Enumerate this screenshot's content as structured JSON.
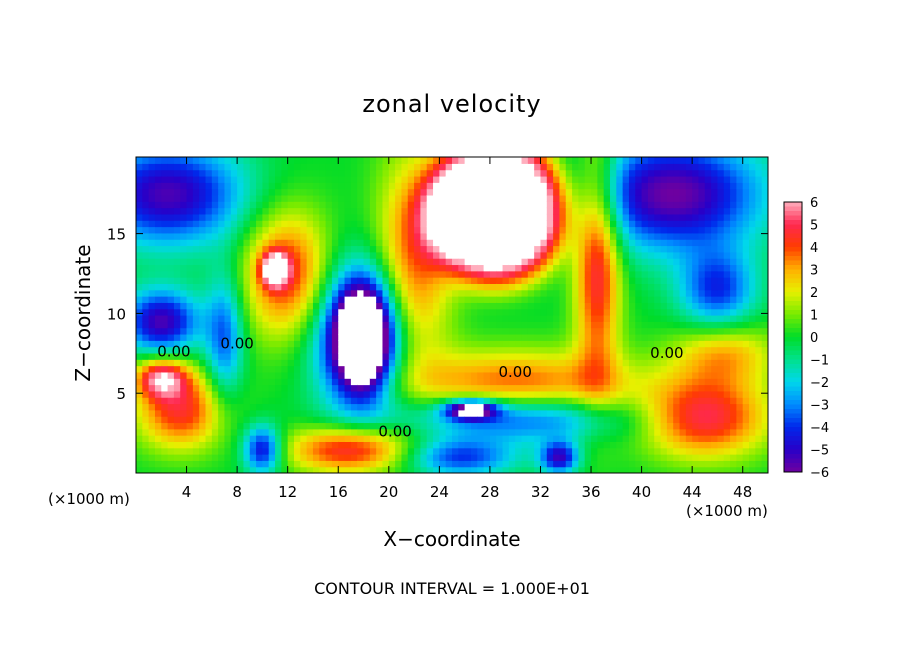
{
  "chart_data": {
    "type": "heatmap",
    "title": "zonal velocity",
    "xlabel": "X−coordinate",
    "ylabel": "Z−coordinate",
    "x_unit_left": "(×1000 m)",
    "x_unit_right": "(×1000 m)",
    "footer": "CONTOUR INTERVAL = 1.000E+01",
    "xlim": [
      0,
      50
    ],
    "ylim": [
      0,
      19.8
    ],
    "x_ticks": [
      4,
      8,
      12,
      16,
      20,
      24,
      28,
      32,
      36,
      40,
      44,
      48
    ],
    "y_ticks": [
      5,
      10,
      15
    ],
    "colorbar": {
      "min": -6,
      "max": 6,
      "ticks": [
        6,
        5,
        4,
        3,
        2,
        1,
        0,
        -1,
        -2,
        -3,
        -4,
        -5,
        -6
      ],
      "labels": [
        "6",
        "5",
        "4",
        "3",
        "2",
        "1",
        "0",
        "−1",
        "−2",
        "−3",
        "−4",
        "−5",
        "−6"
      ]
    },
    "contour_labels": [
      {
        "text": "0.00",
        "x": 3.0,
        "y": 7.3
      },
      {
        "text": "0.00",
        "x": 8.0,
        "y": 7.8
      },
      {
        "text": "0.00",
        "x": 20.5,
        "y": 2.3
      },
      {
        "text": "0.00",
        "x": 30.0,
        "y": 6.0
      },
      {
        "text": "0.00",
        "x": 42.0,
        "y": 7.2
      }
    ],
    "features": [
      {
        "x": 42.5,
        "y": 17.5,
        "rx": 7,
        "ry": 3.5,
        "v": -6
      },
      {
        "x": 2.5,
        "y": 17.5,
        "rx": 6,
        "ry": 3.2,
        "v": -5.5
      },
      {
        "x": 36.5,
        "y": 13.5,
        "rx": 1.8,
        "ry": 7.5,
        "v": 5
      },
      {
        "x": 22,
        "y": 13.5,
        "rx": 3,
        "ry": 6.5,
        "v": 4
      },
      {
        "x": 12,
        "y": 12.5,
        "rx": 3.5,
        "ry": 4,
        "v": 4.5
      },
      {
        "x": 11,
        "y": 12.8,
        "rx": 1,
        "ry": 1,
        "v": 6.5
      },
      {
        "x": 17.5,
        "y": 8.5,
        "rx": 3.5,
        "ry": 4.5,
        "v": -6
      },
      {
        "x": 18,
        "y": 8.5,
        "rx": 2,
        "ry": 3,
        "v": -8
      },
      {
        "x": 30,
        "y": 5.5,
        "rx": 9,
        "ry": 2.2,
        "v": 4
      },
      {
        "x": 30,
        "y": 3.5,
        "rx": 9,
        "ry": 1.5,
        "v": -4.5
      },
      {
        "x": 26.5,
        "y": 4,
        "rx": 2,
        "ry": 0.6,
        "v": -7
      },
      {
        "x": 45,
        "y": 3.5,
        "rx": 5,
        "ry": 2.5,
        "v": 5
      },
      {
        "x": 46.5,
        "y": 7.5,
        "rx": 4,
        "ry": 2,
        "v": 3
      },
      {
        "x": 3.5,
        "y": 4,
        "rx": 3.5,
        "ry": 2.5,
        "v": 4.5
      },
      {
        "x": 2,
        "y": 6,
        "rx": 2,
        "ry": 1.2,
        "v": 5
      },
      {
        "x": 2,
        "y": 9.5,
        "rx": 3,
        "ry": 2,
        "v": -5.5
      },
      {
        "x": 17,
        "y": 1.5,
        "rx": 5,
        "ry": 1.5,
        "v": 5
      },
      {
        "x": 25.5,
        "y": 1,
        "rx": 4.5,
        "ry": 1.2,
        "v": -4
      },
      {
        "x": 10,
        "y": 1.5,
        "rx": 1.5,
        "ry": 1.5,
        "v": -5
      },
      {
        "x": 33.5,
        "y": 1,
        "rx": 1.5,
        "ry": 1,
        "v": -5
      },
      {
        "x": 46,
        "y": 11.5,
        "rx": 3,
        "ry": 2.5,
        "v": -4
      },
      {
        "x": 7,
        "y": 8.5,
        "rx": 1.5,
        "ry": 4,
        "v": -3.5
      }
    ]
  }
}
